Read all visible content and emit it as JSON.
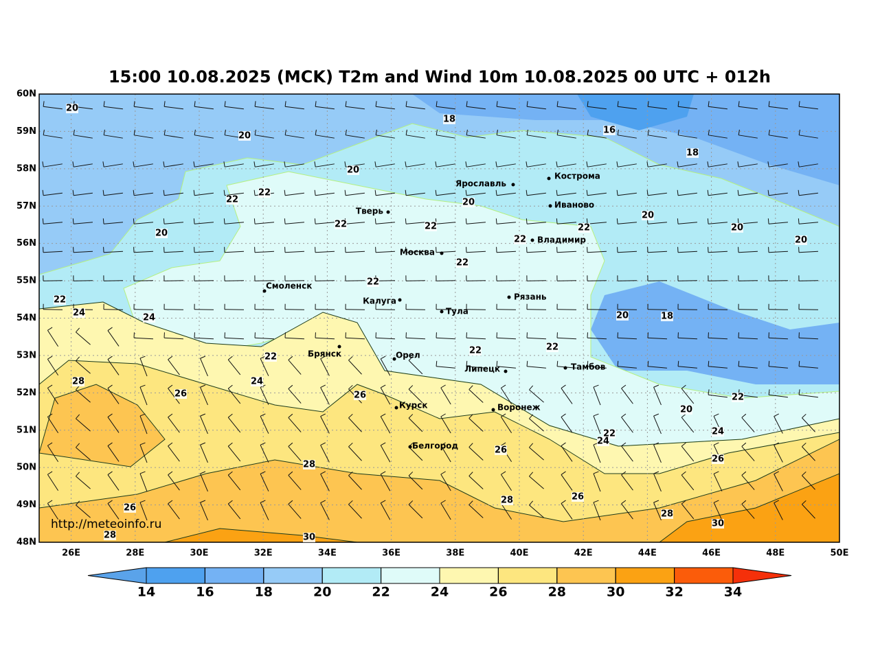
{
  "title": "15:00 10.08.2025 (MCK) T2m and Wind 10m 10.08.2025 00 UTC + 012h",
  "map": {
    "lat_labels": [
      "60N",
      "59N",
      "58N",
      "57N",
      "56N",
      "55N",
      "54N",
      "53N",
      "52N",
      "51N",
      "50N",
      "49N",
      "48N"
    ],
    "lon_labels": [
      "26E",
      "28E",
      "30E",
      "32E",
      "34E",
      "36E",
      "38E",
      "40E",
      "42E",
      "44E",
      "46E",
      "48E",
      "50E"
    ],
    "cities": [
      "Ярославль",
      "Кострома",
      "Иваново",
      "Тверь",
      "Владимир",
      "Москва",
      "Смоленск",
      "Рязань",
      "Калуга",
      "Тула",
      "Брянск",
      "Орел",
      "Липецк",
      "Тамбов",
      "Курск",
      "Воронеж",
      "Белгород"
    ],
    "contour_labels": [
      "20",
      "18",
      "16",
      "20",
      "18",
      "20",
      "22",
      "22",
      "20",
      "20",
      "22",
      "22",
      "22",
      "20",
      "20",
      "22",
      "20",
      "22",
      "22",
      "22",
      "24",
      "24",
      "20",
      "18",
      "22",
      "22",
      "22",
      "28",
      "24",
      "26",
      "26",
      "22",
      "20",
      "24",
      "22",
      "24",
      "26",
      "26",
      "28",
      "26",
      "26",
      "28",
      "28",
      "28",
      "30",
      "30"
    ],
    "watermark": "http://meteoinfo.ru"
  },
  "colorbar": {
    "levels": [
      14,
      16,
      18,
      20,
      22,
      24,
      26,
      28,
      30,
      32,
      34
    ],
    "colors": [
      "#4ea1ef",
      "#74b2f4",
      "#96cbf7",
      "#b2ebf6",
      "#dffbf9",
      "#fef7b0",
      "#fde67f",
      "#fdc551",
      "#fba213",
      "#fb5c0a"
    ],
    "extend_colors": [
      "#5aa3ea",
      "#f5300a"
    ]
  }
}
